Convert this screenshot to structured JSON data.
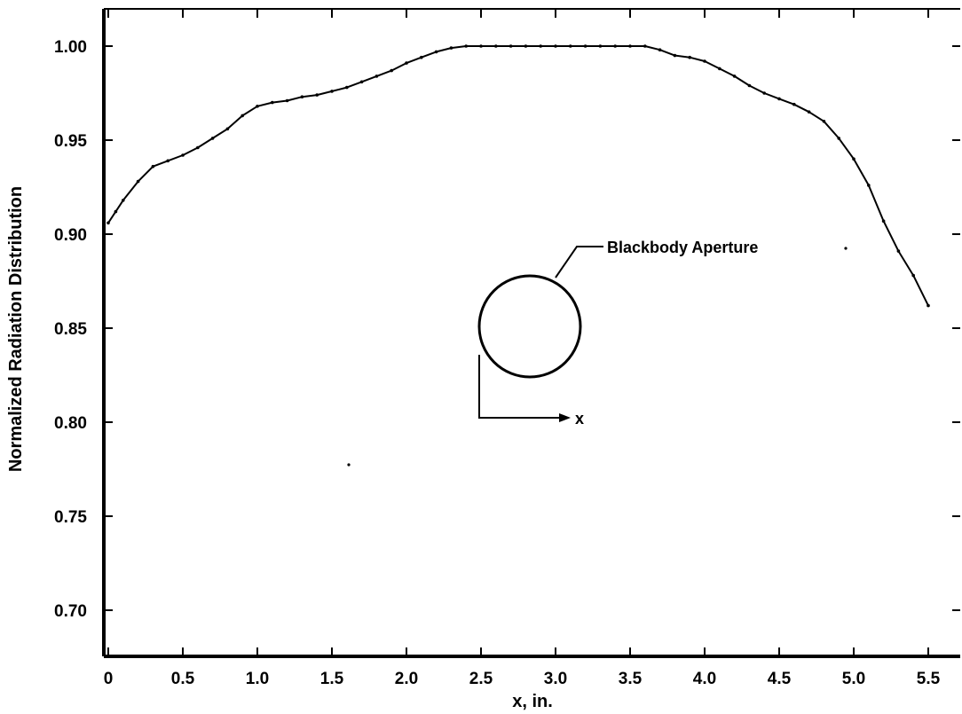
{
  "chart_data": {
    "type": "line",
    "title": "",
    "xlabel": "x, in.",
    "ylabel": "Normalized Radiation Distribution",
    "xlim": [
      0,
      5.6
    ],
    "ylim": [
      0.68,
      1.02
    ],
    "xticks": [
      0,
      0.5,
      1.0,
      1.5,
      2.0,
      2.5,
      3.0,
      3.5,
      4.0,
      4.5,
      5.0,
      5.5
    ],
    "xtick_labels": [
      "0",
      "0.5",
      "1.0",
      "1.5",
      "2.0",
      "2.5",
      "3.0",
      "3.5",
      "4.0",
      "4.5",
      "5.0",
      "5.5"
    ],
    "yticks": [
      0.7,
      0.75,
      0.8,
      0.85,
      0.9,
      0.95,
      1.0
    ],
    "ytick_labels": [
      "0.70",
      "0.75",
      "0.80",
      "0.85",
      "0.90",
      "0.95",
      "1.00"
    ],
    "grid": false,
    "series": [
      {
        "x": [
          0.0,
          0.05,
          0.1,
          0.2,
          0.3,
          0.4,
          0.5,
          0.6,
          0.7,
          0.8,
          0.9,
          1.0,
          1.1,
          1.2,
          1.3,
          1.4,
          1.5,
          1.6,
          1.7,
          1.8,
          1.9,
          2.0,
          2.1,
          2.2,
          2.3,
          2.4,
          2.5,
          2.6,
          2.7,
          2.8,
          2.9,
          3.0,
          3.1,
          3.2,
          3.3,
          3.4,
          3.5,
          3.6,
          3.7,
          3.8,
          3.9,
          4.0,
          4.1,
          4.2,
          4.3,
          4.4,
          4.5,
          4.6,
          4.7,
          4.8,
          4.9,
          5.0,
          5.1,
          5.2,
          5.3,
          5.4,
          5.5
        ],
        "y": [
          0.906,
          0.912,
          0.918,
          0.928,
          0.936,
          0.939,
          0.942,
          0.946,
          0.951,
          0.956,
          0.963,
          0.968,
          0.97,
          0.971,
          0.973,
          0.974,
          0.976,
          0.978,
          0.981,
          0.984,
          0.987,
          0.991,
          0.994,
          0.997,
          0.999,
          1.0,
          1.0,
          1.0,
          1.0,
          1.0,
          1.0,
          1.0,
          1.0,
          1.0,
          1.0,
          1.0,
          1.0,
          1.0,
          0.998,
          0.995,
          0.994,
          0.992,
          0.988,
          0.984,
          0.979,
          0.975,
          0.972,
          0.969,
          0.965,
          0.96,
          0.951,
          0.94,
          0.926,
          0.907,
          0.891,
          0.878,
          0.862
        ]
      }
    ],
    "inset": {
      "label": "Blackbody Aperture",
      "axis_label": "x"
    }
  }
}
